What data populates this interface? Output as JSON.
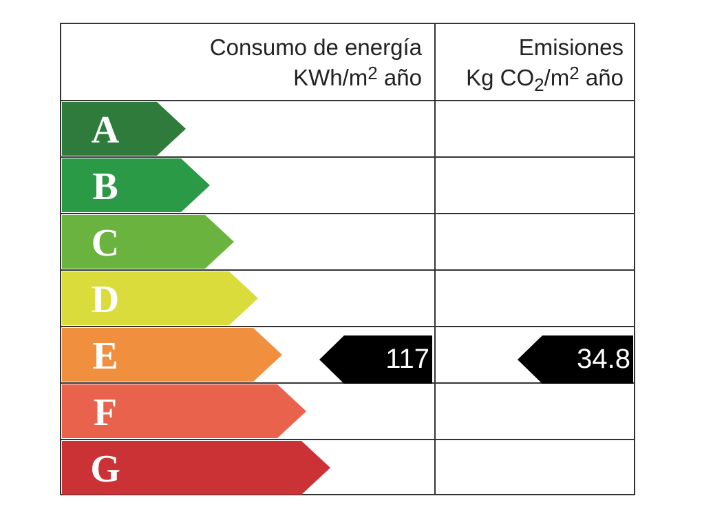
{
  "header": {
    "consumption": {
      "line1": "Consumo de energía",
      "line2": [
        "KWh/m",
        "2",
        " año"
      ]
    },
    "emissions": {
      "line1": "Emisiones",
      "line2": [
        "Kg CO",
        "2",
        "/m",
        "2",
        " año"
      ]
    }
  },
  "ratings": [
    {
      "letter": "A",
      "color": "#2e7b3b"
    },
    {
      "letter": "B",
      "color": "#2b9a46"
    },
    {
      "letter": "C",
      "color": "#6bb33f"
    },
    {
      "letter": "D",
      "color": "#d9dc3b"
    },
    {
      "letter": "E",
      "color": "#f0903f"
    },
    {
      "letter": "F",
      "color": "#e9624b"
    },
    {
      "letter": "G",
      "color": "#cb3236"
    }
  ],
  "indicators": {
    "consumption": 117,
    "emissions": 34.8
  }
}
